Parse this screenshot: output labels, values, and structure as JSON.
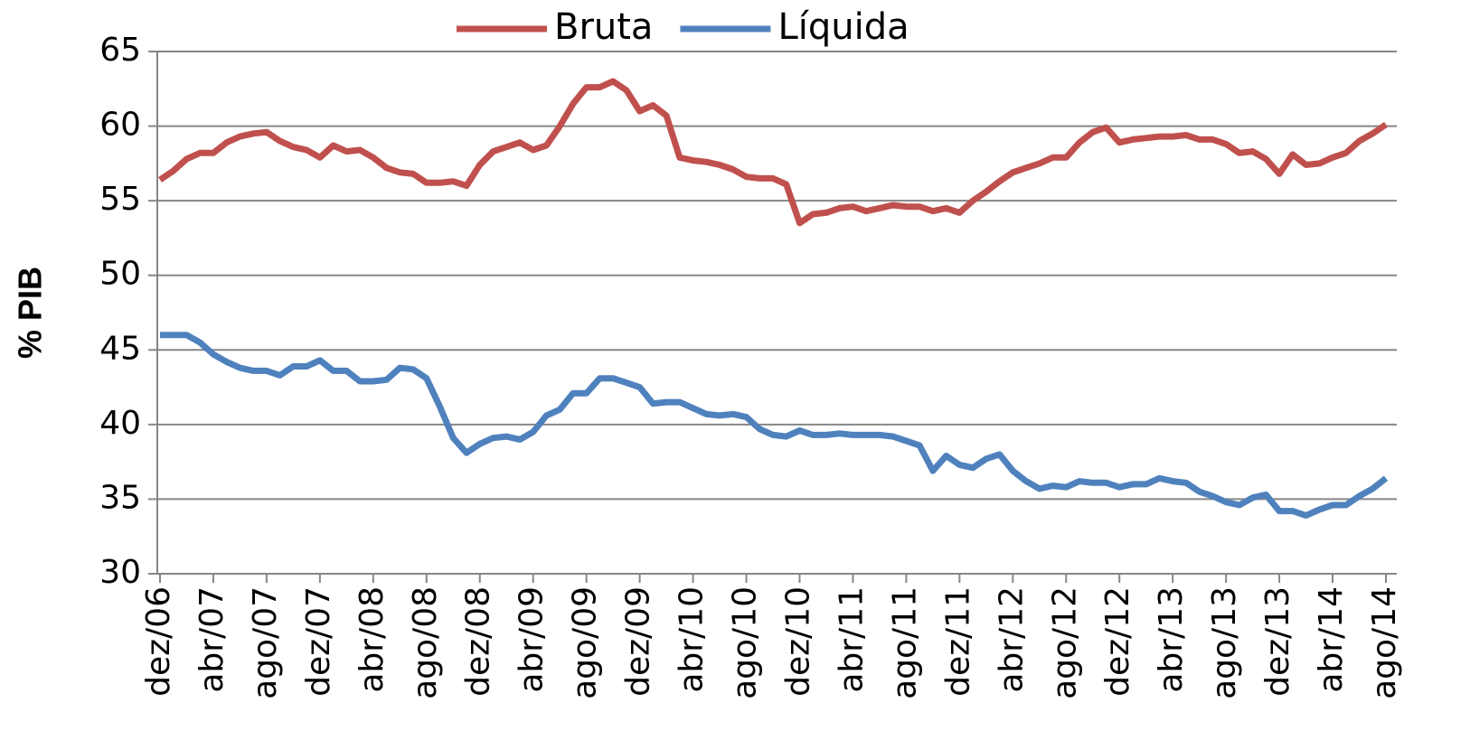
{
  "chart_data": {
    "type": "line",
    "y_label": "% PIB",
    "categories": [
      "dez/06",
      null,
      null,
      null,
      "abr/07",
      null,
      null,
      null,
      "ago/07",
      null,
      null,
      null,
      "dez/07",
      null,
      null,
      null,
      "abr/08",
      null,
      null,
      null,
      "ago/08",
      null,
      null,
      null,
      "dez/08",
      null,
      null,
      null,
      "abr/09",
      null,
      null,
      null,
      "ago/09",
      null,
      null,
      null,
      "dez/09",
      null,
      null,
      null,
      "abr/10",
      null,
      null,
      null,
      "ago/10",
      null,
      null,
      null,
      "dez/10",
      null,
      null,
      null,
      "abr/11",
      null,
      null,
      null,
      "ago/11",
      null,
      null,
      null,
      "dez/11",
      null,
      null,
      null,
      "abr/12",
      null,
      null,
      null,
      "ago/12",
      null,
      null,
      null,
      "dez/12",
      null,
      null,
      null,
      "abr/13",
      null,
      null,
      null,
      "ago/13",
      null,
      null,
      null,
      "dez/13",
      null,
      null,
      null,
      "abr/14",
      null,
      null,
      null,
      "ago/14"
    ],
    "series": [
      {
        "name": "Bruta",
        "color": "#c0504d",
        "values": [
          56.4,
          57.0,
          57.8,
          58.2,
          58.2,
          58.9,
          59.3,
          59.5,
          59.6,
          59.0,
          58.6,
          58.4,
          57.9,
          58.7,
          58.3,
          58.4,
          57.9,
          57.2,
          56.9,
          56.8,
          56.2,
          56.2,
          56.3,
          56.0,
          57.4,
          58.3,
          58.6,
          58.9,
          58.4,
          58.7,
          60.0,
          61.5,
          62.6,
          62.6,
          63.0,
          62.4,
          61.0,
          61.4,
          60.7,
          57.9,
          57.7,
          57.6,
          57.4,
          57.1,
          56.6,
          56.5,
          56.5,
          56.1,
          53.5,
          54.1,
          54.2,
          54.5,
          54.6,
          54.3,
          54.5,
          54.7,
          54.6,
          54.6,
          54.3,
          54.5,
          54.2,
          55.0,
          55.6,
          56.3,
          56.9,
          57.2,
          57.5,
          57.9,
          57.9,
          58.9,
          59.6,
          59.9,
          58.9,
          59.1,
          59.2,
          59.3,
          59.3,
          59.4,
          59.1,
          59.1,
          58.8,
          58.2,
          58.3,
          57.8,
          56.8,
          58.1,
          57.4,
          57.5,
          57.9,
          58.2,
          59.0,
          59.5,
          60.1
        ]
      },
      {
        "name": "Líquida",
        "color": "#4f81bd",
        "values": [
          46.0,
          46.0,
          46.0,
          45.5,
          44.7,
          44.2,
          43.8,
          43.6,
          43.6,
          43.3,
          43.9,
          43.9,
          44.3,
          43.6,
          43.6,
          42.9,
          42.9,
          43.0,
          43.8,
          43.7,
          43.1,
          41.2,
          39.1,
          38.1,
          38.7,
          39.1,
          39.2,
          39.0,
          39.5,
          40.6,
          41.0,
          42.1,
          42.1,
          43.1,
          43.1,
          42.8,
          42.5,
          41.4,
          41.5,
          41.5,
          41.1,
          40.7,
          40.6,
          40.7,
          40.5,
          39.7,
          39.3,
          39.2,
          39.6,
          39.3,
          39.3,
          39.4,
          39.3,
          39.3,
          39.3,
          39.2,
          38.9,
          38.6,
          36.9,
          37.9,
          37.3,
          37.1,
          37.7,
          38.0,
          36.9,
          36.2,
          35.7,
          35.9,
          35.8,
          36.2,
          36.1,
          36.1,
          35.8,
          36.0,
          36.0,
          36.4,
          36.2,
          36.1,
          35.5,
          35.2,
          34.8,
          34.6,
          35.1,
          35.3,
          34.2,
          34.2,
          33.9,
          34.3,
          34.6,
          34.6,
          35.2,
          35.7,
          36.4
        ]
      }
    ],
    "ylim": [
      30,
      65
    ],
    "yticks": [
      30,
      35,
      40,
      45,
      50,
      55,
      60,
      65
    ],
    "grid": true
  }
}
